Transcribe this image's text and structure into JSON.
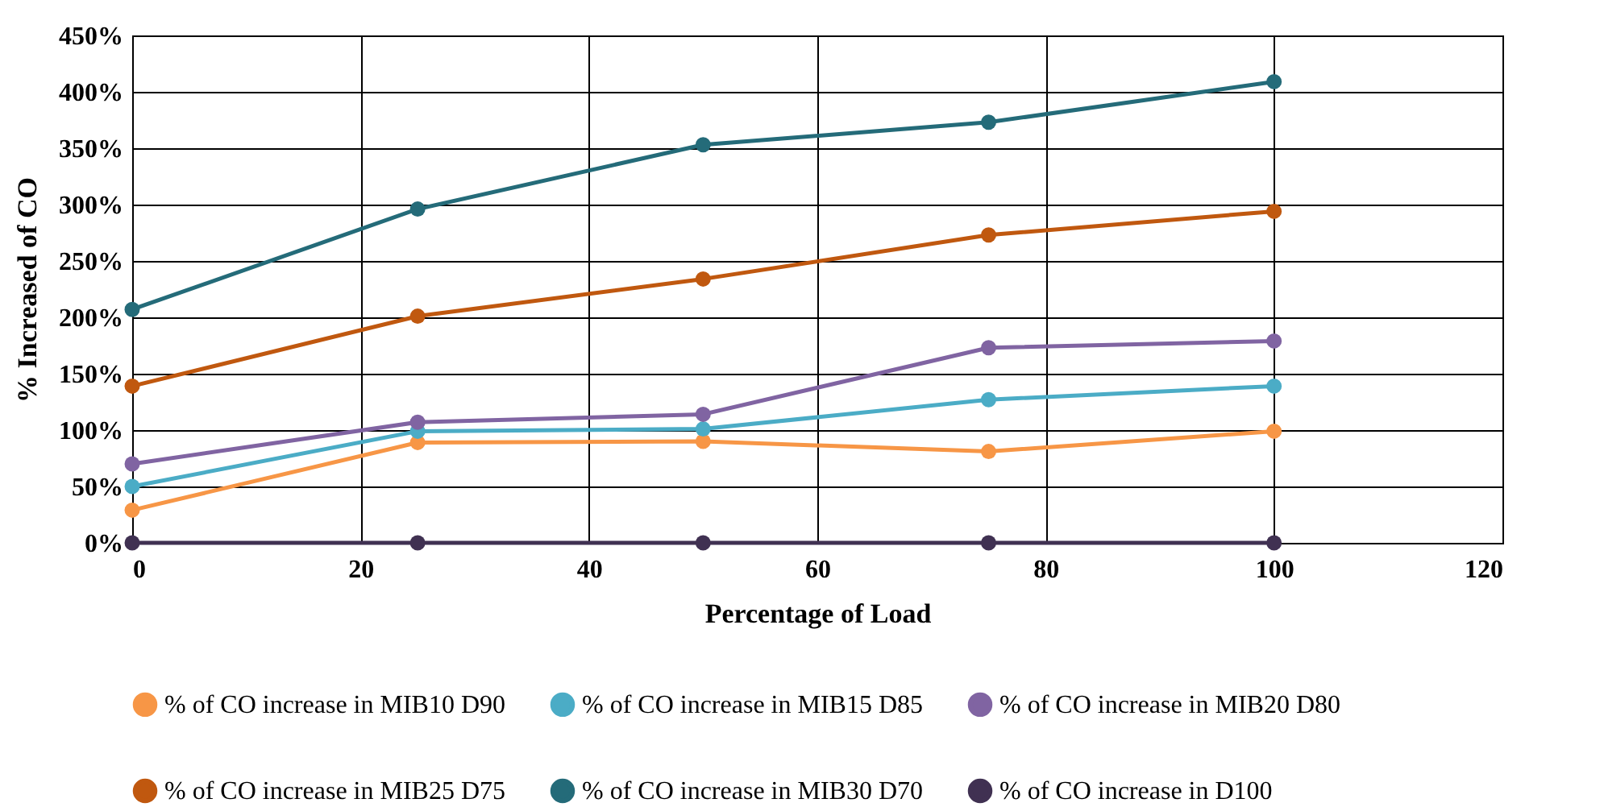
{
  "chart_data": {
    "type": "line",
    "xlabel": "Percentage of Load",
    "ylabel": "% Increased of CO",
    "x": [
      0,
      25,
      50,
      75,
      100
    ],
    "series": [
      {
        "name": "% of CO increase in MIB10 D90",
        "color": "#f79646",
        "values": [
          29,
          89,
          90,
          81,
          99
        ]
      },
      {
        "name": "% of CO increase in MIB15 D85",
        "color": "#4bacc6",
        "values": [
          50,
          99,
          101,
          127,
          139
        ]
      },
      {
        "name": "% of CO increase in MIB20 D80",
        "color": "#8064a2",
        "values": [
          70,
          107,
          114,
          173,
          179
        ]
      },
      {
        "name": "% of CO increase in MIB25 D75",
        "color": "#c0580f",
        "values": [
          139,
          201,
          234,
          273,
          294
        ]
      },
      {
        "name": "% of CO increase in MIB30 D70",
        "color": "#246b79",
        "values": [
          207,
          296,
          353,
          373,
          409
        ]
      },
      {
        "name": "% of CO increase in D100",
        "color": "#403152",
        "values": [
          0,
          0,
          0,
          0,
          0
        ]
      }
    ],
    "xlim": [
      0,
      120
    ],
    "xticks": [
      0,
      20,
      40,
      60,
      80,
      100,
      120
    ],
    "ylim": [
      0,
      450
    ],
    "yticks": [
      {
        "value": 0,
        "label": "0%"
      },
      {
        "value": 50,
        "label": "50%"
      },
      {
        "value": 100,
        "label": "100%"
      },
      {
        "value": 150,
        "label": "150%"
      },
      {
        "value": 200,
        "label": "200%"
      },
      {
        "value": 250,
        "label": "250%"
      },
      {
        "value": 300,
        "label": "300%"
      },
      {
        "value": 350,
        "label": "350%"
      },
      {
        "value": 400,
        "label": "400%"
      },
      {
        "value": 450,
        "label": "450%"
      }
    ],
    "grid": true,
    "legend": "bottom",
    "marker": "circle",
    "line_style": "solid"
  }
}
